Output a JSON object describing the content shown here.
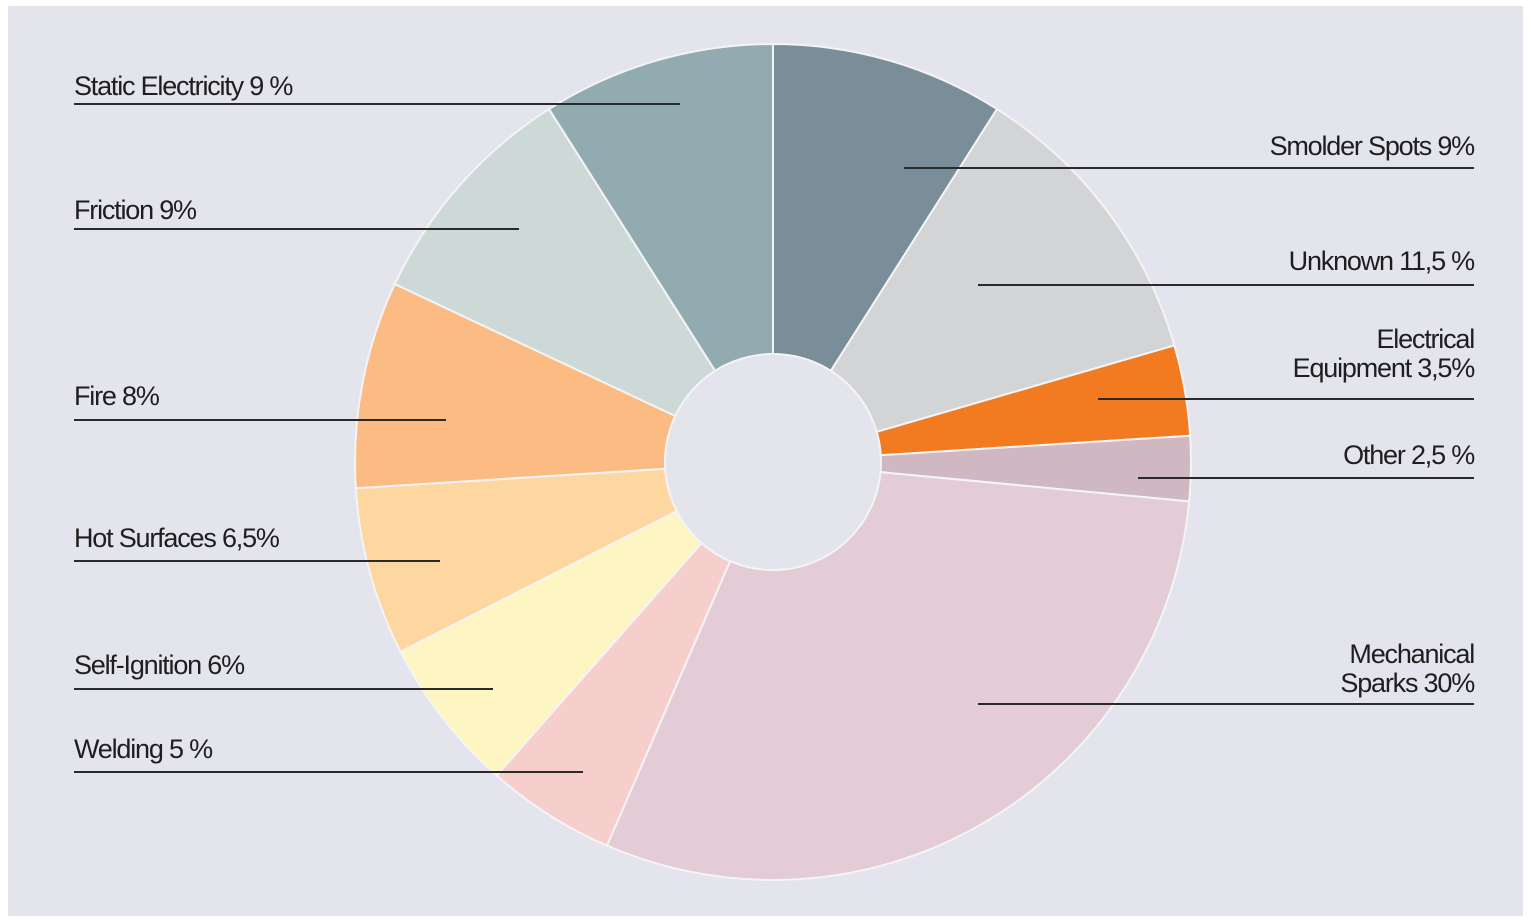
{
  "chart_data": {
    "type": "pie",
    "donut": true,
    "slices": [
      {
        "label": "Smolder Spots 9%",
        "value": 9,
        "color": "#798e99"
      },
      {
        "label": "Unknown 11,5 %",
        "value": 11.5,
        "color": "#d3d4d6"
      },
      {
        "label": "Electrical Equipment 3,5%",
        "label_lines": [
          "Electrical",
          "Equipment 3,5%"
        ],
        "value": 3.5,
        "color": "#f27a20"
      },
      {
        "label": "Other 2,5 %",
        "value": 2.5,
        "color": "#cfb8c1"
      },
      {
        "label": "Mechanical Sparks 30%",
        "label_lines": [
          "Mechanical",
          "Sparks 30%"
        ],
        "value": 30,
        "color": "#e3ccd6"
      },
      {
        "label": "Welding 5 %",
        "value": 5,
        "color": "#f6cfcd"
      },
      {
        "label": "Self-Ignition 6%",
        "value": 6,
        "color": "#fef6c2"
      },
      {
        "label": "Hot Surfaces 6,5%",
        "value": 6.5,
        "color": "#fed7a0"
      },
      {
        "label": "Fire 8%",
        "value": 8,
        "color": "#fbbb82"
      },
      {
        "label": "Friction 9%",
        "value": 9,
        "color": "#cdd9d6"
      },
      {
        "label": "Static Electricity 9 %",
        "value": 9,
        "color": "#92abb0"
      }
    ]
  }
}
